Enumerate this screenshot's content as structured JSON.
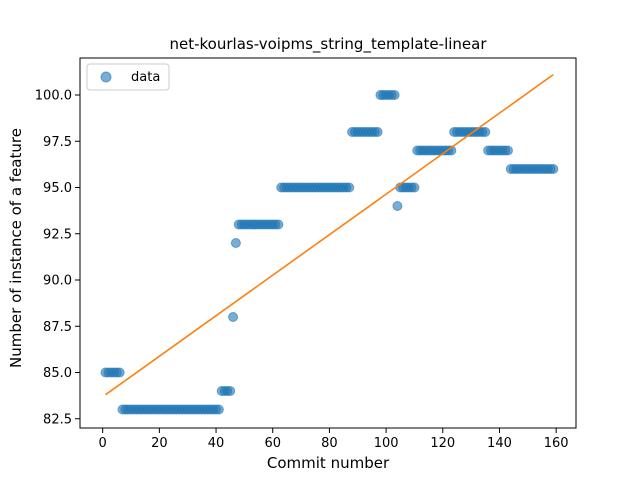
{
  "chart_data": {
    "type": "scatter",
    "title": "net-kourlas-voipms_string_template-linear",
    "xlabel": "Commit number",
    "ylabel": "Number of instance of a feature",
    "xlim": [
      -8,
      167
    ],
    "ylim": [
      82.0,
      102.0
    ],
    "xticks": [
      0,
      20,
      40,
      60,
      80,
      100,
      120,
      140,
      160
    ],
    "yticks": [
      82.5,
      85.0,
      87.5,
      90.0,
      92.5,
      95.0,
      97.5,
      100.0
    ],
    "xtick_labels": [
      "0",
      "20",
      "40",
      "60",
      "80",
      "100",
      "120",
      "140",
      "160"
    ],
    "ytick_labels": [
      "82.5",
      "85.0",
      "87.5",
      "90.0",
      "92.5",
      "95.0",
      "97.5",
      "100.0"
    ],
    "grid": false,
    "legend": {
      "position": "top-left",
      "entries": [
        "data"
      ]
    },
    "colors": {
      "points": "#1f77b4",
      "fit": "#ff7f0e"
    },
    "segments": [
      {
        "x_start": 1,
        "x_end": 6,
        "y": 85
      },
      {
        "x_start": 7,
        "x_end": 41,
        "y": 83
      },
      {
        "x_start": 42,
        "x_end": 45,
        "y": 84
      },
      {
        "x_start": 46,
        "x_end": 46,
        "y": 88
      },
      {
        "x_start": 47,
        "x_end": 47,
        "y": 92
      },
      {
        "x_start": 48,
        "x_end": 62,
        "y": 93
      },
      {
        "x_start": 63,
        "x_end": 87,
        "y": 95
      },
      {
        "x_start": 88,
        "x_end": 97,
        "y": 98
      },
      {
        "x_start": 98,
        "x_end": 103,
        "y": 100
      },
      {
        "x_start": 104,
        "x_end": 104,
        "y": 94
      },
      {
        "x_start": 105,
        "x_end": 110,
        "y": 95
      },
      {
        "x_start": 111,
        "x_end": 123,
        "y": 97
      },
      {
        "x_start": 124,
        "x_end": 135,
        "y": 98
      },
      {
        "x_start": 136,
        "x_end": 143,
        "y": 97
      },
      {
        "x_start": 144,
        "x_end": 159,
        "y": 96
      }
    ],
    "fit_line": {
      "x": [
        1,
        159
      ],
      "y": [
        83.8,
        101.1
      ]
    }
  }
}
